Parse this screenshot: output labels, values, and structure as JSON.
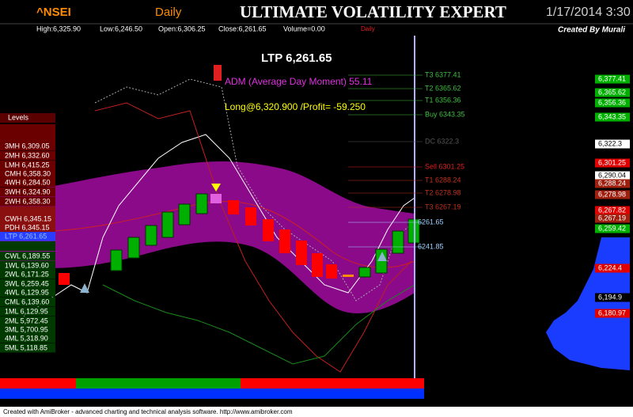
{
  "header": {
    "symbol": "^NSEI",
    "interval": "Daily",
    "title": "ULTIMATE VOLATILITY EXPERT",
    "datetime": "1/17/2014 3:30",
    "stats": [
      "High:6,325.90",
      "Low:6,246.50",
      "Open:6,306.25",
      "Close:6,261.65",
      "Volume=0.00"
    ],
    "mode": "Daily",
    "credit": "Created By Murali"
  },
  "chart": {
    "ltp": "LTP 6,261.65",
    "adm": "ADM (Average Day Moment) 55.11",
    "position": "Long@6,320.900 /Profit= -59.250"
  },
  "levels": {
    "title": "Levels",
    "items": [
      {
        "text": "3MH 6,309.05",
        "bg": "#6b0000",
        "color": "#ffffff"
      },
      {
        "text": "2MH 6,332.60",
        "bg": "#6b0000",
        "color": "#ffffff"
      },
      {
        "text": "LMH 6,415.25",
        "bg": "#6b0000",
        "color": "#ffffff"
      },
      {
        "text": "CMH 6,358.30",
        "bg": "#6b0000",
        "color": "#ffffff"
      },
      {
        "text": "4WH 6,284.50",
        "bg": "#6b0000",
        "color": "#ffffff"
      },
      {
        "text": "3WH 6,324.90",
        "bg": "#6b0000",
        "color": "#ffffff"
      },
      {
        "text": "2WH 6,358.30",
        "bg": "#6b0000",
        "color": "#ffffff"
      },
      {
        "text": "CWH 6,345.15",
        "bg": "#8a1010",
        "color": "#ffffff"
      },
      {
        "text": "PDH 6,345.15",
        "bg": "#8a1010",
        "color": "#ffffff"
      },
      {
        "text": "LTP 6,261.65",
        "bg": "#2a3cff",
        "color": "#8fc8ff"
      },
      {
        "text": "CWL 6,189.55",
        "bg": "#003a00",
        "color": "#ffffff"
      },
      {
        "text": "1WL 6,139.60",
        "bg": "#003a00",
        "color": "#ffffff"
      },
      {
        "text": "2WL 6,171.25",
        "bg": "#003a00",
        "color": "#ffffff"
      },
      {
        "text": "3WL 6,259.45",
        "bg": "#003a00",
        "color": "#ffffff"
      },
      {
        "text": "4WL 6,129.95",
        "bg": "#003a00",
        "color": "#ffffff"
      },
      {
        "text": "CML 6,139.60",
        "bg": "#003a00",
        "color": "#ffffff"
      },
      {
        "text": "1ML 6,129.95",
        "bg": "#003a00",
        "color": "#ffffff"
      },
      {
        "text": "2ML 5,972.45",
        "bg": "#003a00",
        "color": "#ffffff"
      },
      {
        "text": "3ML 5,700.95",
        "bg": "#003a00",
        "color": "#ffffff"
      },
      {
        "text": "4ML 5,318.90",
        "bg": "#003a00",
        "color": "#ffffff"
      },
      {
        "text": "5ML 5,118.85",
        "bg": "#003a00",
        "color": "#ffffff"
      }
    ]
  },
  "targets": [
    {
      "text": "T3 6377.41",
      "color": "#3fbf3f"
    },
    {
      "text": "T2 6365.62",
      "color": "#3fbf3f"
    },
    {
      "text": "T1 6356.36",
      "color": "#3fbf3f"
    },
    {
      "text": "Buy 6343.35",
      "color": "#3fbf3f"
    },
    {
      "text": "DC 6322.3",
      "color": "#555555"
    },
    {
      "text": "Sell 6301.25",
      "color": "#e02020"
    },
    {
      "text": "T1 6288.24",
      "color": "#c03020"
    },
    {
      "text": "T2 6278.98",
      "color": "#c03020"
    },
    {
      "text": "T3 6267.19",
      "color": "#c03020"
    },
    {
      "text": "6261.65",
      "color": "#9fd0ff"
    },
    {
      "text": "6241.85",
      "color": "#9fd0ff"
    }
  ],
  "axis_labels": [
    {
      "text": "6,377.41",
      "bg": "#00b000",
      "color": "#ffffff"
    },
    {
      "text": "6,365.62",
      "bg": "#00b000",
      "color": "#ffffff"
    },
    {
      "text": "6,356.36",
      "bg": "#00b000",
      "color": "#ffffff"
    },
    {
      "text": "6,343.35",
      "bg": "#00b000",
      "color": "#ffffff"
    },
    {
      "text": "6,322.3",
      "bg": "#ffffff",
      "color": "#000000"
    },
    {
      "text": "6,301.25",
      "bg": "#e00000",
      "color": "#ffffff"
    },
    {
      "text": "6,290.04",
      "bg": "#ffffff",
      "color": "#000000"
    },
    {
      "text": "6,288.24",
      "bg": "#a02010",
      "color": "#ffffff"
    },
    {
      "text": "6,278.98",
      "bg": "#a02010",
      "color": "#ffffff"
    },
    {
      "text": "6,267.82",
      "bg": "#e00000",
      "color": "#ffffff"
    },
    {
      "text": "6,267.19",
      "bg": "#a02010",
      "color": "#ffffff"
    },
    {
      "text": "6,259.42",
      "bg": "#00b000",
      "color": "#ffffff"
    },
    {
      "text": "6,224.4",
      "bg": "#e00000",
      "color": "#ffffff"
    },
    {
      "text": "6,194.9",
      "bg": "#000000",
      "color": "#ffffff"
    },
    {
      "text": "6,180.97",
      "bg": "#e00000",
      "color": "#ffffff"
    }
  ],
  "footer": "Created with AmiBroker - advanced charting and technical analysis software. http://www.amibroker.com"
}
